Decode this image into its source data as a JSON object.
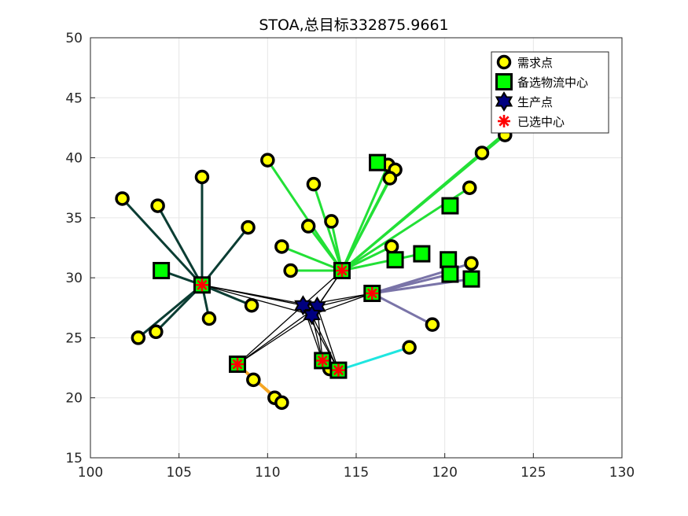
{
  "chart_data": {
    "type": "scatter",
    "title": "STOA,总目标332875.9661",
    "xlim": [
      100,
      130
    ],
    "ylim": [
      15,
      50
    ],
    "xticks": [
      100,
      105,
      110,
      115,
      120,
      125,
      130
    ],
    "yticks": [
      15,
      20,
      25,
      30,
      35,
      40,
      45,
      50
    ],
    "grid": true,
    "legend_position": "top-right",
    "legend": [
      {
        "label": "需求点",
        "marker": "circle"
      },
      {
        "label": "备选物流中心",
        "marker": "square"
      },
      {
        "label": "生产点",
        "marker": "hexagram"
      },
      {
        "label": "已选中心",
        "marker": "asterisk"
      }
    ],
    "colors": {
      "demand_face": "#ffff00",
      "candidate_face": "#00ff00",
      "production_face": "#000080",
      "selected": "#ff0000",
      "grid": "#e6e6e6",
      "axis": "#262626"
    },
    "demand_points": [
      [
        101.8,
        36.6
      ],
      [
        103.8,
        36.0
      ],
      [
        106.3,
        38.4
      ],
      [
        108.9,
        34.2
      ],
      [
        102.7,
        25.0
      ],
      [
        103.7,
        25.5
      ],
      [
        106.7,
        26.6
      ],
      [
        109.1,
        27.7
      ],
      [
        110.0,
        39.8
      ],
      [
        112.6,
        37.8
      ],
      [
        112.3,
        34.3
      ],
      [
        113.6,
        34.7
      ],
      [
        110.8,
        32.6
      ],
      [
        111.3,
        30.6
      ],
      [
        116.8,
        39.4
      ],
      [
        117.2,
        39.0
      ],
      [
        116.9,
        38.3
      ],
      [
        117.0,
        32.6
      ],
      [
        121.4,
        37.5
      ],
      [
        122.1,
        40.4
      ],
      [
        123.4,
        41.9
      ],
      [
        121.5,
        31.2
      ],
      [
        119.3,
        26.1
      ],
      [
        118.0,
        24.2
      ],
      [
        113.5,
        22.4
      ],
      [
        109.2,
        21.5
      ],
      [
        110.4,
        20.0
      ],
      [
        110.8,
        19.6
      ]
    ],
    "candidate_centers": [
      [
        104.0,
        30.6
      ],
      [
        116.2,
        39.6
      ],
      [
        120.3,
        36.0
      ],
      [
        117.2,
        31.5
      ],
      [
        118.7,
        32.0
      ],
      [
        120.2,
        31.5
      ],
      [
        120.3,
        30.3
      ],
      [
        121.5,
        29.9
      ],
      [
        106.3,
        29.4
      ],
      [
        114.2,
        30.6
      ],
      [
        115.9,
        28.7
      ],
      [
        108.3,
        22.8
      ],
      [
        113.1,
        23.1
      ],
      [
        114.0,
        22.3
      ]
    ],
    "production_points": [
      [
        112.0,
        27.7
      ],
      [
        112.8,
        27.6
      ],
      [
        112.5,
        26.9
      ]
    ],
    "selected_centers": [
      [
        106.3,
        29.4
      ],
      [
        114.2,
        30.6
      ],
      [
        115.9,
        28.7
      ],
      [
        108.3,
        22.8
      ],
      [
        113.1,
        23.1
      ],
      [
        114.0,
        22.3
      ]
    ],
    "assignments": [
      {
        "center": [
          106.3,
          29.4
        ],
        "color": "#0b3d33",
        "demands": [
          [
            101.8,
            36.6
          ],
          [
            103.8,
            36.0
          ],
          [
            106.3,
            38.4
          ],
          [
            108.9,
            34.2
          ],
          [
            102.7,
            25.0
          ],
          [
            103.7,
            25.5
          ],
          [
            106.7,
            26.6
          ],
          [
            109.1,
            27.7
          ],
          [
            104.0,
            30.6
          ]
        ]
      },
      {
        "center": [
          114.2,
          30.6
        ],
        "color": "#22e036",
        "demands": [
          [
            110.0,
            39.8
          ],
          [
            112.6,
            37.8
          ],
          [
            112.3,
            34.3
          ],
          [
            113.6,
            34.7
          ],
          [
            110.8,
            32.6
          ],
          [
            111.3,
            30.6
          ],
          [
            116.8,
            39.4
          ],
          [
            117.2,
            39.0
          ],
          [
            116.9,
            38.3
          ],
          [
            117.0,
            32.6
          ],
          [
            121.4,
            37.5
          ],
          [
            122.1,
            40.4
          ],
          [
            123.4,
            41.9
          ],
          [
            123.1,
            41.7
          ],
          [
            118.7,
            32.0
          ]
        ]
      },
      {
        "center": [
          115.9,
          28.7
        ],
        "color": "#7a74a8",
        "demands": [
          [
            121.5,
            31.2
          ],
          [
            119.3,
            26.1
          ],
          [
            120.3,
            30.3
          ],
          [
            121.5,
            29.9
          ]
        ]
      },
      {
        "center": [
          108.3,
          22.8
        ],
        "color": "#f5a623",
        "demands": [
          [
            109.2,
            21.5
          ],
          [
            110.4,
            20.0
          ],
          [
            110.8,
            19.6
          ]
        ]
      },
      {
        "center": [
          114.0,
          22.3
        ],
        "color": "#1fe6e0",
        "demands": [
          [
            118.0,
            24.2
          ]
        ]
      },
      {
        "center": [
          113.1,
          23.1
        ],
        "color": "#1c1c1c",
        "demands": [
          [
            113.5,
            22.4
          ]
        ]
      }
    ],
    "production_links": [
      [
        [
          112.0,
          27.7
        ],
        [
          106.3,
          29.4
        ]
      ],
      [
        [
          112.8,
          27.6
        ],
        [
          106.3,
          29.4
        ]
      ],
      [
        [
          112.5,
          26.9
        ],
        [
          106.3,
          29.4
        ]
      ],
      [
        [
          112.0,
          27.7
        ],
        [
          114.2,
          30.6
        ]
      ],
      [
        [
          112.8,
          27.6
        ],
        [
          114.2,
          30.6
        ]
      ],
      [
        [
          112.5,
          26.9
        ],
        [
          114.2,
          30.6
        ]
      ],
      [
        [
          112.0,
          27.7
        ],
        [
          115.9,
          28.7
        ]
      ],
      [
        [
          112.8,
          27.6
        ],
        [
          115.9,
          28.7
        ]
      ],
      [
        [
          112.5,
          26.9
        ],
        [
          115.9,
          28.7
        ]
      ],
      [
        [
          112.0,
          27.7
        ],
        [
          108.3,
          22.8
        ]
      ],
      [
        [
          112.8,
          27.6
        ],
        [
          108.3,
          22.8
        ]
      ],
      [
        [
          112.5,
          26.9
        ],
        [
          108.3,
          22.8
        ]
      ],
      [
        [
          112.0,
          27.7
        ],
        [
          113.1,
          23.1
        ]
      ],
      [
        [
          112.8,
          27.6
        ],
        [
          113.1,
          23.1
        ]
      ],
      [
        [
          112.5,
          26.9
        ],
        [
          113.1,
          23.1
        ]
      ],
      [
        [
          112.0,
          27.7
        ],
        [
          114.0,
          22.3
        ]
      ],
      [
        [
          112.8,
          27.6
        ],
        [
          114.0,
          22.3
        ]
      ],
      [
        [
          112.5,
          26.9
        ],
        [
          114.0,
          22.3
        ]
      ]
    ]
  }
}
